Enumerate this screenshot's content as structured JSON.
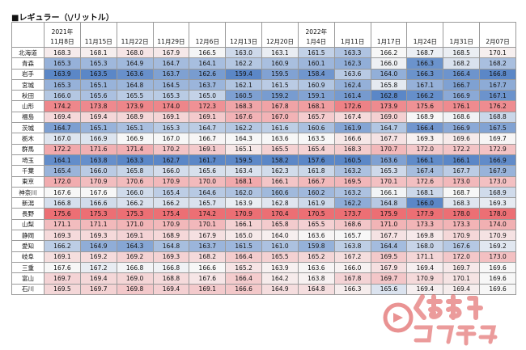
{
  "title": "■レギュラー（\\/リットル）",
  "columns": [
    {
      "year": "2021年",
      "date": "11月8日"
    },
    {
      "year": "",
      "date": "11月15日"
    },
    {
      "year": "",
      "date": "11月22日"
    },
    {
      "year": "",
      "date": "11月29日"
    },
    {
      "year": "",
      "date": "12月6日"
    },
    {
      "year": "",
      "date": "12月13日"
    },
    {
      "year": "",
      "date": "12月20日"
    },
    {
      "year": "2022年",
      "date": "1月4日"
    },
    {
      "year": "",
      "date": "1月11日"
    },
    {
      "year": "",
      "date": "1月17日"
    },
    {
      "year": "",
      "date": "1月24日"
    },
    {
      "year": "",
      "date": "1月31日"
    },
    {
      "year": "",
      "date": "2月07日"
    }
  ],
  "rows": [
    {
      "name": "北海道",
      "values": [
        "168.3",
        "168.1",
        "168.0",
        "167.9",
        "166.5",
        "163.0",
        "163.1",
        "161.5",
        "163.3",
        "166.2",
        "168.7",
        "168.5",
        "170.1"
      ]
    },
    {
      "name": "青森",
      "values": [
        "165.3",
        "165.3",
        "164.9",
        "164.7",
        "164.1",
        "162.2",
        "160.9",
        "160.1",
        "162.3",
        "166.0",
        "166.3",
        "168.2",
        "168.2"
      ]
    },
    {
      "name": "岩手",
      "values": [
        "163.9",
        "163.5",
        "163.6",
        "163.7",
        "162.6",
        "159.4",
        "159.5",
        "158.4",
        "163.6",
        "164.0",
        "166.3",
        "166.4",
        "166.8"
      ]
    },
    {
      "name": "宮城",
      "values": [
        "165.3",
        "165.1",
        "164.8",
        "164.5",
        "163.7",
        "162.1",
        "161.5",
        "160.9",
        "162.4",
        "165.8",
        "167.1",
        "166.7",
        "167.7"
      ]
    },
    {
      "name": "秋田",
      "values": [
        "166.0",
        "165.6",
        "165.5",
        "165.3",
        "165.0",
        "160.5",
        "159.2",
        "159.1",
        "161.4",
        "162.8",
        "166.2",
        "166.9",
        "167.1"
      ]
    },
    {
      "name": "山形",
      "values": [
        "174.2",
        "173.8",
        "173.9",
        "174.0",
        "172.3",
        "168.3",
        "167.8",
        "168.1",
        "172.6",
        "173.9",
        "175.6",
        "176.1",
        "176.2"
      ]
    },
    {
      "name": "福島",
      "values": [
        "169.4",
        "169.4",
        "168.9",
        "169.1",
        "169.1",
        "167.6",
        "167.0",
        "165.7",
        "167.4",
        "169.0",
        "168.9",
        "168.6",
        "168.8"
      ]
    },
    {
      "name": "茨城",
      "values": [
        "164.7",
        "165.1",
        "165.1",
        "165.3",
        "164.7",
        "162.2",
        "161.6",
        "160.6",
        "161.9",
        "164.7",
        "166.4",
        "166.9",
        "167.5"
      ]
    },
    {
      "name": "栃木",
      "values": [
        "167.0",
        "166.9",
        "166.9",
        "167.0",
        "166.7",
        "164.3",
        "163.6",
        "163.5",
        "166.6",
        "167.7",
        "169.3",
        "169.6",
        "169.7"
      ]
    },
    {
      "name": "群馬",
      "values": [
        "172.2",
        "171.6",
        "171.4",
        "170.2",
        "169.1",
        "165.1",
        "165.5",
        "165.4",
        "168.3",
        "170.7",
        "172.0",
        "172.2",
        "172.9"
      ]
    },
    {
      "name": "埼玉",
      "values": [
        "164.1",
        "163.8",
        "163.3",
        "162.7",
        "161.7",
        "159.5",
        "158.2",
        "157.6",
        "160.5",
        "163.6",
        "166.1",
        "166.1",
        "166.9"
      ]
    },
    {
      "name": "千葉",
      "values": [
        "165.4",
        "166.0",
        "165.8",
        "166.0",
        "165.6",
        "163.4",
        "162.3",
        "161.8",
        "163.2",
        "165.3",
        "167.4",
        "167.7",
        "167.9"
      ]
    },
    {
      "name": "東京",
      "values": [
        "172.0",
        "170.9",
        "170.6",
        "170.9",
        "170.0",
        "168.1",
        "166.1",
        "166.7",
        "169.5",
        "170.1",
        "172.6",
        "173.0",
        "173.0"
      ]
    },
    {
      "name": "神奈川",
      "values": [
        "167.6",
        "167.6",
        "166.0",
        "165.4",
        "164.6",
        "162.0",
        "160.6",
        "160.2",
        "163.2",
        "166.1",
        "168.1",
        "168.7",
        "168.9"
      ]
    },
    {
      "name": "新潟",
      "values": [
        "166.8",
        "166.6",
        "166.2",
        "166.2",
        "165.7",
        "163.9",
        "162.8",
        "161.9",
        "162.2",
        "164.8",
        "166.0",
        "168.3",
        "169.3"
      ]
    },
    {
      "name": "長野",
      "values": [
        "175.6",
        "175.3",
        "175.3",
        "175.4",
        "174.2",
        "170.9",
        "170.4",
        "170.5",
        "173.7",
        "175.9",
        "177.9",
        "178.0",
        "178.0"
      ]
    },
    {
      "name": "山梨",
      "values": [
        "171.1",
        "171.1",
        "171.0",
        "170.9",
        "170.1",
        "166.1",
        "165.8",
        "165.5",
        "168.6",
        "171.0",
        "173.3",
        "173.3",
        "174.0"
      ]
    },
    {
      "name": "静岡",
      "values": [
        "169.3",
        "169.3",
        "169.1",
        "168.9",
        "167.9",
        "165.0",
        "164.0",
        "163.6",
        "165.7",
        "167.7",
        "169.8",
        "170.9",
        "170.9"
      ]
    },
    {
      "name": "愛知",
      "values": [
        "166.2",
        "164.9",
        "164.3",
        "164.8",
        "163.7",
        "161.5",
        "161.0",
        "159.8",
        "163.8",
        "164.4",
        "168.0",
        "167.6",
        "169.2"
      ]
    },
    {
      "name": "岐阜",
      "values": [
        "169.1",
        "169.2",
        "169.2",
        "169.3",
        "168.2",
        "166.4",
        "165.5",
        "165.2",
        "167.2",
        "169.5",
        "171.1",
        "172.0",
        "173.0"
      ]
    },
    {
      "name": "三重",
      "values": [
        "167.6",
        "167.2",
        "166.8",
        "166.8",
        "166.6",
        "165.2",
        "163.9",
        "163.6",
        "166.0",
        "167.9",
        "169.4",
        "169.7",
        "169.6"
      ]
    },
    {
      "name": "富山",
      "values": [
        "169.7",
        "169.4",
        "169.0",
        "168.8",
        "167.6",
        "166.4",
        "164.2",
        "163.8",
        "167.8",
        "169.7",
        "170.9",
        "170.1",
        "169.6"
      ]
    },
    {
      "name": "石川",
      "values": [
        "169.5",
        "169.7",
        "169.8",
        "169.4",
        "169.1",
        "166.6",
        "164.9",
        "164.8",
        "166.3",
        "165.6",
        "169.4",
        "169.4",
        "169.6"
      ]
    }
  ],
  "colors": {
    "cold": "#5b87c7",
    "neutral": "#f7f7f7",
    "hot": "#ec6f74",
    "grid": "#9a9a9a"
  },
  "watermark": {
    "brand": "くるまのニュース",
    "color": "#d83a3a"
  }
}
